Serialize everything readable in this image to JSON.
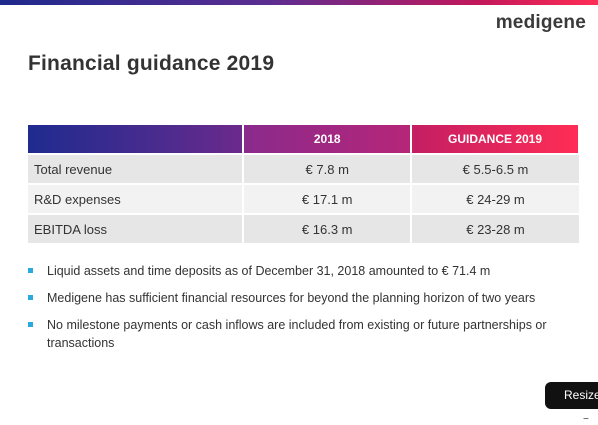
{
  "brand": {
    "logo_text": "medigene"
  },
  "slide": {
    "title": "Financial guidance 2019"
  },
  "table": {
    "headers": [
      "",
      "2018",
      "GUIDANCE 2019"
    ],
    "rows": [
      {
        "label": "Total revenue",
        "y2018": "€ 7.8 m",
        "guidance": "€ 5.5-6.5 m"
      },
      {
        "label": "R&D expenses",
        "y2018": "€ 17.1 m",
        "guidance": "€ 24-29 m"
      },
      {
        "label": "EBITDA loss",
        "y2018": "€ 16.3 m",
        "guidance": "€ 23-28 m"
      }
    ]
  },
  "bullets": [
    {
      "text": "Liquid assets and time deposits as of December 31, 2018 amounted to € 71.4 m"
    },
    {
      "text": "Medigene has sufficient financial resources for beyond the planning horizon of two years"
    },
    {
      "text": "No milestone payments or cash inflows are included from existing or future partnerships or transactions"
    }
  ],
  "overlay": {
    "resize_label": "Resize",
    "minus_label": "−"
  },
  "colors": {
    "bullet": "#29a9e0",
    "accent_blue": "#1f2b8f",
    "accent_pink": "#ff2d55"
  }
}
